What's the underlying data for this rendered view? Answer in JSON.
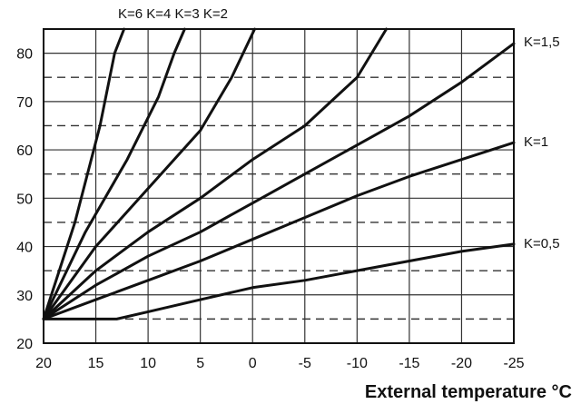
{
  "chart_data": {
    "type": "line",
    "title": "",
    "xlabel": "External temperature °C",
    "ylabel": "",
    "xlim": [
      20,
      -25
    ],
    "ylim": [
      20,
      85
    ],
    "x_reversed": true,
    "x_ticks": [
      20,
      15,
      10,
      5,
      0,
      -5,
      -10,
      -15,
      -20,
      -25
    ],
    "y_ticks": [
      20,
      30,
      40,
      50,
      60,
      70,
      80
    ],
    "grid": {
      "vertical_solid": true,
      "horizontal_solid_at_tens": true,
      "horizontal_dashed_at_fives": true
    },
    "series": [
      {
        "name": "K=6",
        "points": [
          [
            20,
            25
          ],
          [
            17,
            45
          ],
          [
            14.6,
            65
          ],
          [
            13.2,
            80
          ],
          [
            12.3,
            85
          ]
        ]
      },
      {
        "name": "K=4",
        "points": [
          [
            20,
            25
          ],
          [
            16,
            43
          ],
          [
            12,
            58
          ],
          [
            9,
            71
          ],
          [
            7.5,
            80
          ],
          [
            6.5,
            85
          ]
        ]
      },
      {
        "name": "K=3",
        "points": [
          [
            20,
            25
          ],
          [
            15,
            40
          ],
          [
            10,
            52
          ],
          [
            5,
            64
          ],
          [
            2,
            75
          ],
          [
            -0.2,
            85
          ]
        ]
      },
      {
        "name": "K=2",
        "points": [
          [
            20,
            25
          ],
          [
            15,
            35
          ],
          [
            10,
            43
          ],
          [
            5,
            50
          ],
          [
            0,
            58
          ],
          [
            -5,
            65
          ],
          [
            -10,
            75
          ],
          [
            -12.8,
            85
          ]
        ]
      },
      {
        "name": "K=1,5",
        "points": [
          [
            20,
            25
          ],
          [
            15,
            32
          ],
          [
            10,
            38
          ],
          [
            5,
            43
          ],
          [
            0,
            49
          ],
          [
            -5,
            55
          ],
          [
            -10,
            61
          ],
          [
            -15,
            67
          ],
          [
            -20,
            74
          ],
          [
            -25,
            82
          ]
        ]
      },
      {
        "name": "K=1",
        "points": [
          [
            20,
            25
          ],
          [
            15,
            29
          ],
          [
            10,
            33
          ],
          [
            5,
            37
          ],
          [
            0,
            41.5
          ],
          [
            -5,
            46
          ],
          [
            -10,
            50.5
          ],
          [
            -15,
            54.5
          ],
          [
            -20,
            58
          ],
          [
            -25,
            61.5
          ]
        ]
      },
      {
        "name": "K=0,5",
        "points": [
          [
            20,
            25
          ],
          [
            13,
            25
          ],
          [
            10,
            26.5
          ],
          [
            5,
            29
          ],
          [
            0,
            31.5
          ],
          [
            -5,
            33
          ],
          [
            -10,
            35
          ],
          [
            -15,
            37
          ],
          [
            -20,
            39
          ],
          [
            -25,
            40.5
          ]
        ]
      }
    ],
    "top_labels": [
      "K=6",
      "K=4",
      "K=3",
      "K=2"
    ],
    "right_labels": [
      "K=1,5",
      "K=1",
      "K=0,5"
    ],
    "label_text": {
      "top": "K=6 K=4 K=3 K=2",
      "k15": "K=1,5",
      "k1": "K=1",
      "k05": "K=0,5"
    },
    "colors": {
      "line": "#111111",
      "grid": "#333333",
      "background": "#ffffff"
    }
  }
}
